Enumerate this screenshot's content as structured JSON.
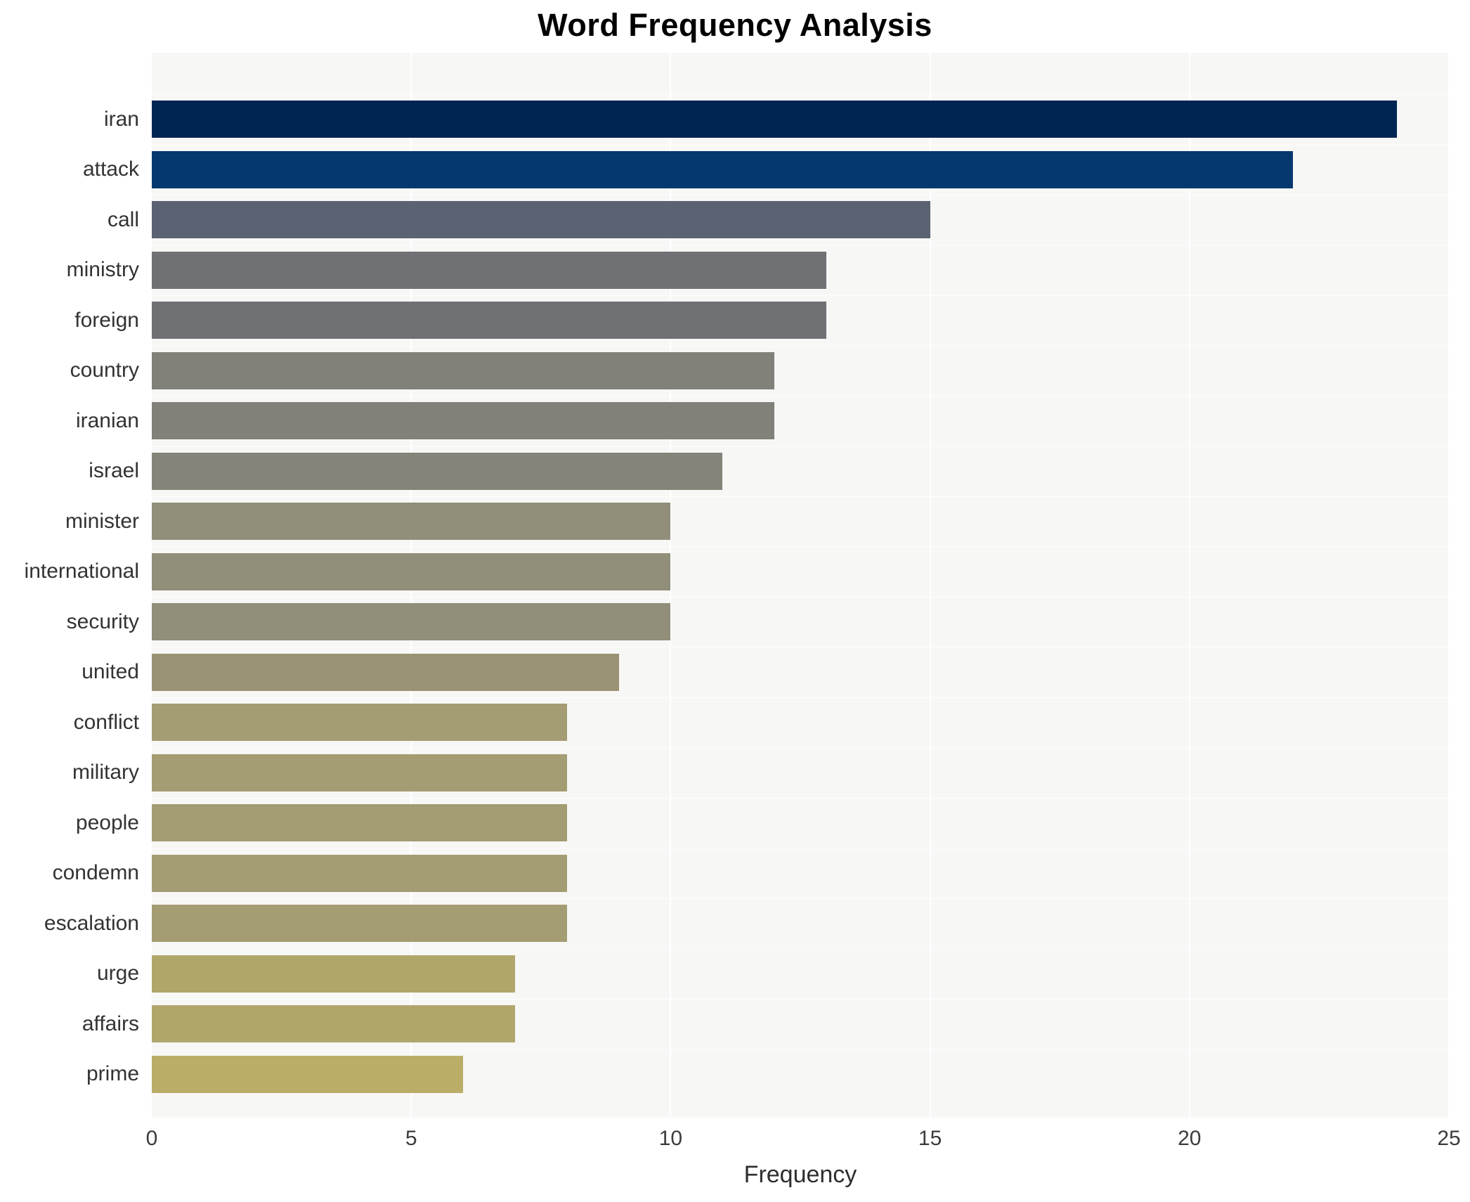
{
  "chart_data": {
    "type": "bar",
    "orientation": "horizontal",
    "title": "Word Frequency Analysis",
    "xlabel": "Frequency",
    "ylabel": "",
    "xlim": [
      0,
      25
    ],
    "xticks": [
      0,
      5,
      10,
      15,
      20,
      25
    ],
    "grid": true,
    "legend": "none",
    "plot_background": "#f7f7f6",
    "grid_color": "#ffffff",
    "categories": [
      "iran",
      "attack",
      "call",
      "ministry",
      "foreign",
      "country",
      "iranian",
      "israel",
      "minister",
      "international",
      "security",
      "united",
      "conflict",
      "military",
      "people",
      "condemn",
      "escalation",
      "urge",
      "affairs",
      "prime"
    ],
    "values": [
      24,
      22,
      15,
      13,
      13,
      12,
      12,
      11,
      10,
      10,
      10,
      9,
      8,
      8,
      8,
      8,
      8,
      7,
      7,
      6
    ],
    "bar_colors": [
      "#012552",
      "#04386e",
      "#5b6272",
      "#707175",
      "#707175",
      "#81817a",
      "#81817a",
      "#858478",
      "#918e79",
      "#918e79",
      "#918e79",
      "#999274",
      "#a49c72",
      "#a49c72",
      "#a49c72",
      "#a49c72",
      "#a49c72",
      "#b0a66c",
      "#b0a66c",
      "#b9ad68"
    ]
  }
}
